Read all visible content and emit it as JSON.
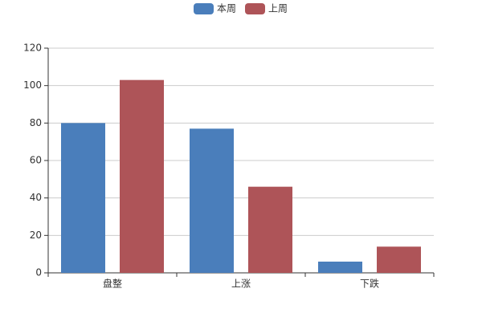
{
  "chart_data": {
    "type": "bar",
    "categories": [
      "盘整",
      "上涨",
      "下跌"
    ],
    "series": [
      {
        "name": "本周",
        "color": "#4a7ebb",
        "values": [
          80,
          77,
          6
        ]
      },
      {
        "name": "上周",
        "color": "#ae5458",
        "values": [
          103,
          46,
          14
        ]
      }
    ],
    "ylim": [
      0,
      120
    ],
    "yticks": [
      0,
      20,
      40,
      60,
      80,
      100,
      120
    ],
    "grid": true,
    "legend": "top"
  }
}
